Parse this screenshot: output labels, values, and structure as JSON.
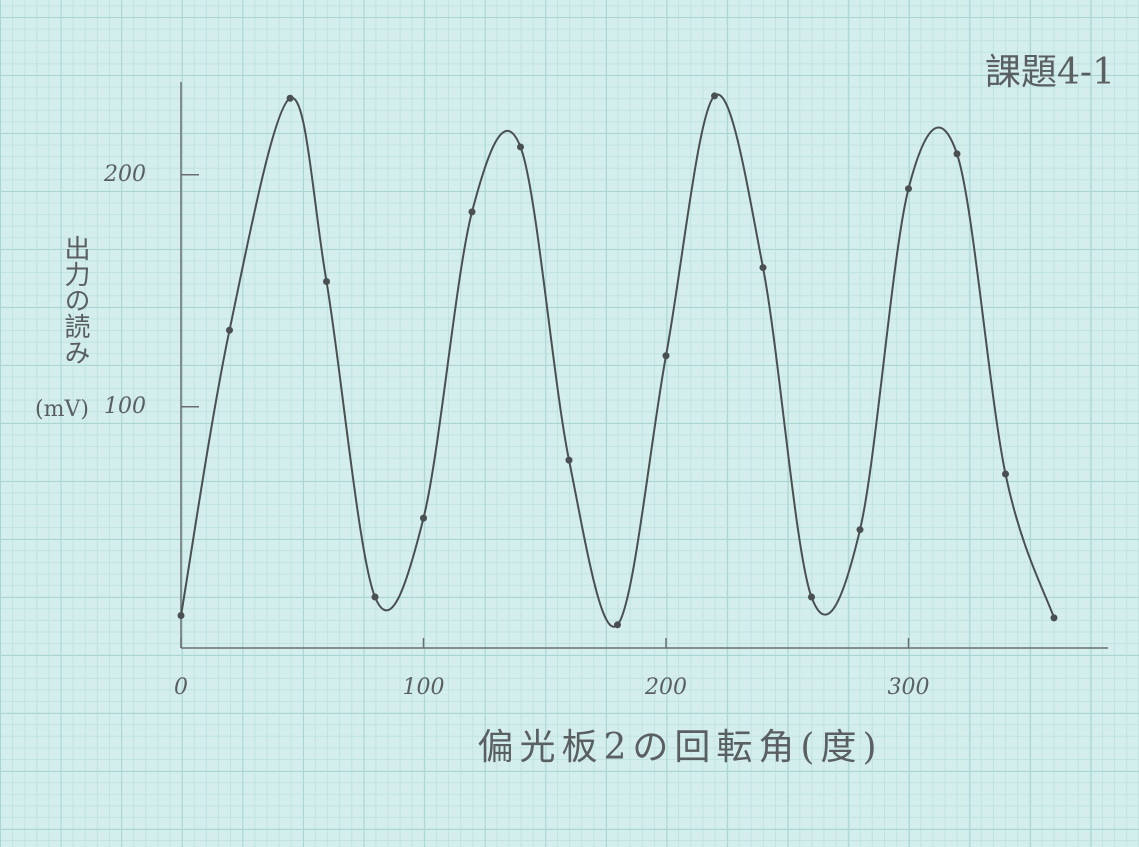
{
  "chart_data": {
    "type": "line",
    "title": "課題4-1",
    "xlabel": "偏光板2の回転角(度)",
    "ylabel": "出力の読み",
    "yunit": "(mV)",
    "x": [
      0,
      20,
      45,
      60,
      80,
      100,
      120,
      140,
      160,
      180,
      200,
      220,
      240,
      260,
      280,
      300,
      320,
      340,
      360
    ],
    "series": [
      {
        "color": "#4a4f52",
        "values": [
          10,
          133,
          233,
          154,
          18,
          52,
          184,
          212,
          77,
          6,
          122,
          234,
          160,
          18,
          47,
          194,
          209,
          71,
          9
        ]
      }
    ],
    "xlim": [
      0,
      380
    ],
    "ylim": [
      -4,
      240
    ],
    "xticks": [
      0,
      100,
      200,
      300
    ],
    "yticks": [
      100,
      200
    ],
    "grid": true
  }
}
